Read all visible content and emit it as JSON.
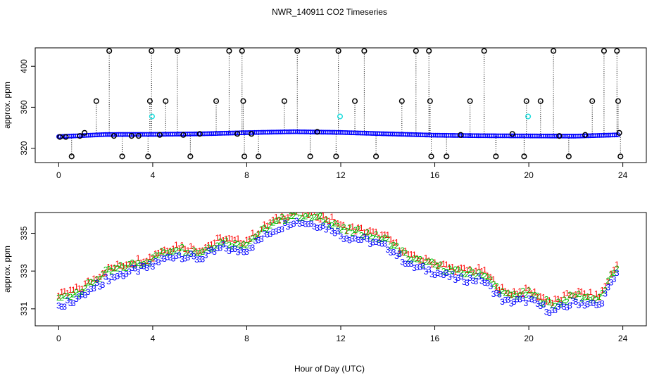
{
  "chart_data": {
    "title": "NWR_140911  CO2 Timeseries",
    "xlabel": "Hour of Day (UTC)",
    "x_ticks": [
      "0",
      "4",
      "8",
      "12",
      "16",
      "20",
      "24"
    ],
    "panels": [
      {
        "type": "scatter",
        "name": "raw",
        "ylabel": "approx. ppm",
        "xlim": [
          -1,
          25
        ],
        "ylim": [
          306,
          418
        ],
        "y_ticks": [
          "320",
          "360",
          "400"
        ],
        "series": [
          {
            "name": "blue-3",
            "color": "#0000ff",
            "symbol": "3",
            "x": [
              0.0,
              2.0,
              4.0,
              6.0,
              8.0,
              10.0,
              12.0,
              14.0,
              16.0,
              18.0,
              20.0,
              22.0,
              23.75
            ],
            "y": [
              331.3,
              333.4,
              333.5,
              334.0,
              335.2,
              336.1,
              335.4,
              334.0,
              332.7,
              332.2,
              332.0,
              331.8,
              333.0
            ]
          },
          {
            "name": "black-o",
            "color": "#000000",
            "symbol": "o",
            "x": [
              0.05,
              0.3,
              0.55,
              0.9,
              1.1,
              1.6,
              2.15,
              2.35,
              2.7,
              3.1,
              3.4,
              3.8,
              3.88,
              3.95,
              4.3,
              4.55,
              5.05,
              5.3,
              5.6,
              6.0,
              6.7,
              7.25,
              7.6,
              7.8,
              7.85,
              7.9,
              8.2,
              8.5,
              9.6,
              10.15,
              10.7,
              11.0,
              11.8,
              11.9,
              12.6,
              13.0,
              13.5,
              14.6,
              15.2,
              15.75,
              15.8,
              15.85,
              16.5,
              17.1,
              17.5,
              18.1,
              18.6,
              19.3,
              19.8,
              19.9,
              20.5,
              21.05,
              21.3,
              21.7,
              22.4,
              22.7,
              23.2,
              23.75,
              23.8,
              23.85,
              23.9
            ],
            "y": [
              331,
              331,
              312,
              332,
              335,
              366,
              415,
              332,
              312,
              332,
              332,
              312,
              366,
              415,
              333,
              366,
              415,
              333,
              312,
              334,
              366,
              415,
              334,
              415,
              366,
              312,
              334,
              312,
              366,
              415,
              312,
              336,
              312,
              415,
              366,
              415,
              312,
              366,
              415,
              415,
              366,
              312,
              312,
              333,
              366,
              415,
              312,
              334,
              312,
              366,
              366,
              415,
              332,
              312,
              333,
              366,
              415,
              415,
              366,
              335,
              312
            ]
          },
          {
            "name": "cyan-o",
            "color": "#22dddd",
            "symbol": "o",
            "x": [
              3.97,
              11.97,
              19.97
            ],
            "y": [
              351,
              351,
              351
            ]
          }
        ]
      },
      {
        "type": "scatter",
        "name": "zoom",
        "ylabel": "approx. ppm",
        "xlim": [
          -1,
          25
        ],
        "ylim": [
          330.1,
          336.1
        ],
        "y_ticks": [
          "331",
          "333",
          "335"
        ],
        "series": [
          {
            "name": "series-1",
            "color": "#ff0000",
            "symbol": "1",
            "offset": 0.35,
            "x": [
              0.0,
              1.0,
              2.0,
              3.0,
              4.0,
              4.1,
              5.0,
              6.0,
              7.0,
              7.5,
              8.0,
              9.0,
              10.0,
              11.0,
              11.8,
              12.0,
              13.0,
              14.0,
              15.0,
              16.0,
              17.0,
              18.0,
              19.0,
              20.0,
              21.0,
              22.0,
              23.0,
              23.75
            ],
            "y": [
              331.3,
              331.8,
              332.7,
              333.1,
              333.4,
              333.6,
              334.0,
              333.8,
              334.4,
              334.2,
              334.3,
              335.2,
              335.8,
              335.6,
              335.3,
              335.0,
              334.8,
              334.4,
              333.4,
              333.1,
              332.7,
              332.7,
              331.5,
              331.6,
              331.0,
              331.5,
              331.3,
              333.0
            ]
          },
          {
            "name": "series-2",
            "color": "#00bb00",
            "symbol": "2",
            "offset": 0.2,
            "x": [
              0.0,
              1.0,
              2.0,
              3.0,
              4.0,
              4.1,
              5.0,
              6.0,
              7.0,
              7.5,
              8.0,
              9.0,
              10.0,
              11.0,
              11.8,
              12.0,
              13.0,
              14.0,
              15.0,
              16.0,
              17.0,
              18.0,
              19.0,
              20.0,
              21.0,
              22.0,
              23.0,
              23.75
            ],
            "y": [
              331.3,
              331.8,
              332.7,
              333.1,
              333.4,
              333.6,
              334.0,
              333.8,
              334.4,
              334.2,
              334.3,
              335.2,
              335.8,
              335.6,
              335.3,
              335.0,
              334.8,
              334.4,
              333.4,
              333.1,
              332.7,
              332.7,
              331.5,
              331.6,
              331.0,
              331.5,
              331.3,
              333.0
            ]
          },
          {
            "name": "series-3",
            "color": "#0000ff",
            "symbol": "3",
            "offset": -0.15,
            "x": [
              0.0,
              1.0,
              2.0,
              3.0,
              4.0,
              4.1,
              5.0,
              6.0,
              7.0,
              7.5,
              8.0,
              9.0,
              10.0,
              11.0,
              11.8,
              12.0,
              13.0,
              14.0,
              15.0,
              16.0,
              17.0,
              18.0,
              19.0,
              20.0,
              21.0,
              22.0,
              23.0,
              23.75
            ],
            "y": [
              331.3,
              331.8,
              332.7,
              333.1,
              333.4,
              333.6,
              334.0,
              333.8,
              334.4,
              334.2,
              334.3,
              335.2,
              335.8,
              335.6,
              335.3,
              335.0,
              334.8,
              334.4,
              333.4,
              333.1,
              332.7,
              332.7,
              331.5,
              331.6,
              331.0,
              331.5,
              331.3,
              333.0
            ]
          }
        ]
      }
    ]
  }
}
